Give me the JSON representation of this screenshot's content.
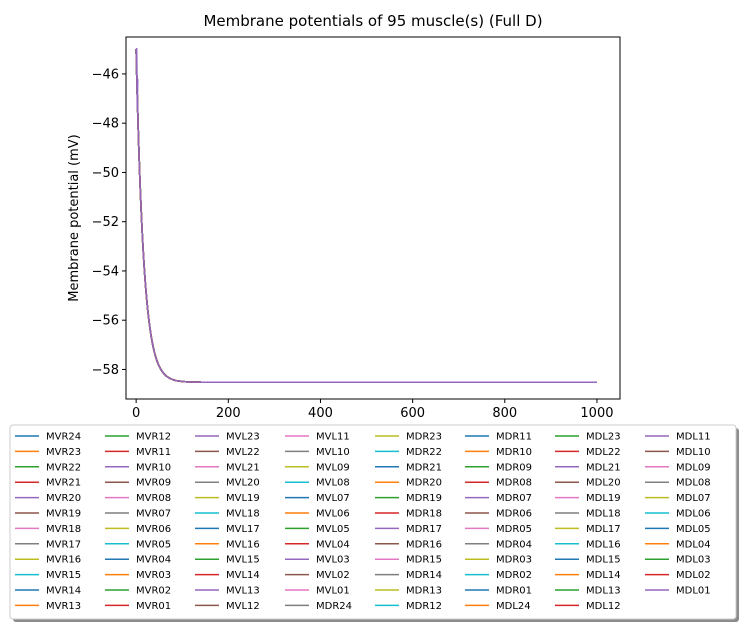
{
  "chart_data": {
    "type": "line",
    "title": "Membrane potentials of 95 muscle(s) (Full D)",
    "xlabel": "",
    "ylabel": "Membrane potential (mV)",
    "xlim": [
      -22,
      1050
    ],
    "ylim": [
      -59.2,
      -44.5
    ],
    "xticks": [
      0,
      200,
      400,
      600,
      800,
      1000
    ],
    "yticks": [
      -58,
      -56,
      -54,
      -52,
      -50,
      -48,
      -46
    ],
    "grid": false,
    "legend_position": "below",
    "legend_columns": 8,
    "series_shape": {
      "initial_value": -45.0,
      "steady_state": -58.52,
      "time_constant": 16.5,
      "x_end": 1000
    },
    "color_cycle": [
      "#1f77b4",
      "#ff7f0e",
      "#2ca02c",
      "#d62728",
      "#9467bd",
      "#8c564b",
      "#e377c2",
      "#7f7f7f",
      "#bcbd22",
      "#17becf"
    ],
    "series": [
      {
        "name": "MVR24"
      },
      {
        "name": "MVR23"
      },
      {
        "name": "MVR22"
      },
      {
        "name": "MVR21"
      },
      {
        "name": "MVR20"
      },
      {
        "name": "MVR19"
      },
      {
        "name": "MVR18"
      },
      {
        "name": "MVR17"
      },
      {
        "name": "MVR16"
      },
      {
        "name": "MVR15"
      },
      {
        "name": "MVR14"
      },
      {
        "name": "MVR13"
      },
      {
        "name": "MVR12"
      },
      {
        "name": "MVR11"
      },
      {
        "name": "MVR10"
      },
      {
        "name": "MVR09"
      },
      {
        "name": "MVR08"
      },
      {
        "name": "MVR07"
      },
      {
        "name": "MVR06"
      },
      {
        "name": "MVR05"
      },
      {
        "name": "MVR04"
      },
      {
        "name": "MVR03"
      },
      {
        "name": "MVR02"
      },
      {
        "name": "MVR01"
      },
      {
        "name": "MVL23"
      },
      {
        "name": "MVL22"
      },
      {
        "name": "MVL21"
      },
      {
        "name": "MVL20"
      },
      {
        "name": "MVL19"
      },
      {
        "name": "MVL18"
      },
      {
        "name": "MVL17"
      },
      {
        "name": "MVL16"
      },
      {
        "name": "MVL15"
      },
      {
        "name": "MVL14"
      },
      {
        "name": "MVL13"
      },
      {
        "name": "MVL12"
      },
      {
        "name": "MVL11"
      },
      {
        "name": "MVL10"
      },
      {
        "name": "MVL09"
      },
      {
        "name": "MVL08"
      },
      {
        "name": "MVL07"
      },
      {
        "name": "MVL06"
      },
      {
        "name": "MVL05"
      },
      {
        "name": "MVL04"
      },
      {
        "name": "MVL03"
      },
      {
        "name": "MVL02"
      },
      {
        "name": "MVL01"
      },
      {
        "name": "MDR24"
      },
      {
        "name": "MDR23"
      },
      {
        "name": "MDR22"
      },
      {
        "name": "MDR21"
      },
      {
        "name": "MDR20"
      },
      {
        "name": "MDR19"
      },
      {
        "name": "MDR18"
      },
      {
        "name": "MDR17"
      },
      {
        "name": "MDR16"
      },
      {
        "name": "MDR15"
      },
      {
        "name": "MDR14"
      },
      {
        "name": "MDR13"
      },
      {
        "name": "MDR12"
      },
      {
        "name": "MDR11"
      },
      {
        "name": "MDR10"
      },
      {
        "name": "MDR09"
      },
      {
        "name": "MDR08"
      },
      {
        "name": "MDR07"
      },
      {
        "name": "MDR06"
      },
      {
        "name": "MDR05"
      },
      {
        "name": "MDR04"
      },
      {
        "name": "MDR03"
      },
      {
        "name": "MDR02"
      },
      {
        "name": "MDR01"
      },
      {
        "name": "MDL24"
      },
      {
        "name": "MDL23"
      },
      {
        "name": "MDL22"
      },
      {
        "name": "MDL21"
      },
      {
        "name": "MDL20"
      },
      {
        "name": "MDL19"
      },
      {
        "name": "MDL18"
      },
      {
        "name": "MDL17"
      },
      {
        "name": "MDL16"
      },
      {
        "name": "MDL15"
      },
      {
        "name": "MDL14"
      },
      {
        "name": "MDL13"
      },
      {
        "name": "MDL12"
      },
      {
        "name": "MDL11"
      },
      {
        "name": "MDL10"
      },
      {
        "name": "MDL09"
      },
      {
        "name": "MDL08"
      },
      {
        "name": "MDL07"
      },
      {
        "name": "MDL06"
      },
      {
        "name": "MDL05"
      },
      {
        "name": "MDL04"
      },
      {
        "name": "MDL03"
      },
      {
        "name": "MDL02"
      },
      {
        "name": "MDL01"
      }
    ]
  }
}
